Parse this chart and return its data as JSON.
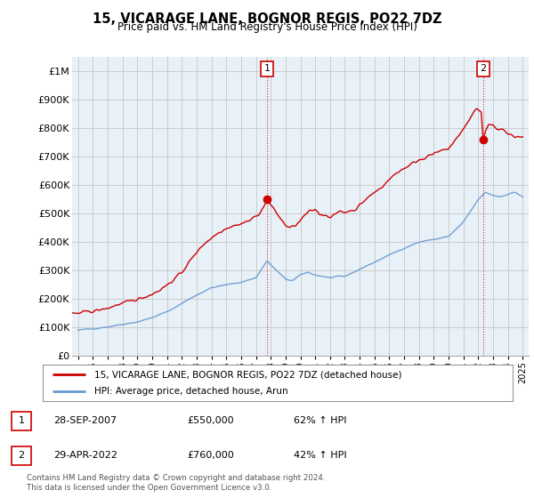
{
  "title": "15, VICARAGE LANE, BOGNOR REGIS, PO22 7DZ",
  "subtitle": "Price paid vs. HM Land Registry's House Price Index (HPI)",
  "legend_line1": "15, VICARAGE LANE, BOGNOR REGIS, PO22 7DZ (detached house)",
  "legend_line2": "HPI: Average price, detached house, Arun",
  "annotation1_label": "1",
  "annotation1_date": "28-SEP-2007",
  "annotation1_price": "£550,000",
  "annotation1_hpi": "62% ↑ HPI",
  "annotation2_label": "2",
  "annotation2_date": "29-APR-2022",
  "annotation2_price": "£760,000",
  "annotation2_hpi": "42% ↑ HPI",
  "footer": "Contains HM Land Registry data © Crown copyright and database right 2024.\nThis data is licensed under the Open Government Licence v3.0.",
  "sale_color": "#cc0000",
  "hpi_color": "#6699cc",
  "background_color": "#ffffff",
  "chart_bg_color": "#e8f0f8",
  "grid_color": "#cccccc",
  "ylim": [
    0,
    1050000
  ],
  "yticks": [
    0,
    100000,
    200000,
    300000,
    400000,
    500000,
    600000,
    700000,
    800000,
    900000,
    1000000
  ],
  "ytick_labels": [
    "£0",
    "£100K",
    "£200K",
    "£300K",
    "£400K",
    "£500K",
    "£600K",
    "£700K",
    "£800K",
    "£900K",
    "£1M"
  ],
  "sale1_x": 2007.75,
  "sale1_y": 550000,
  "sale2_x": 2022.33,
  "sale2_y": 760000,
  "xlim_left": 1994.6,
  "xlim_right": 2025.4
}
